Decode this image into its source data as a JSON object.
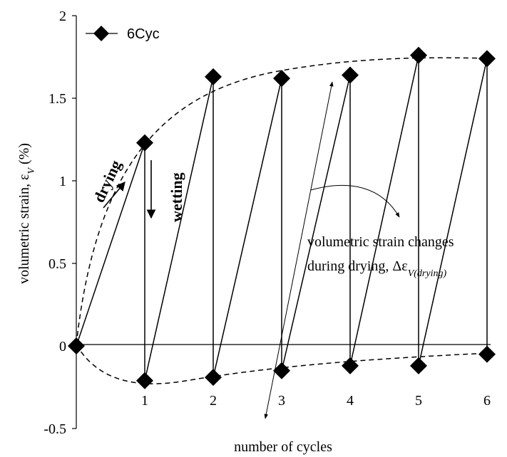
{
  "chart_data": {
    "type": "line",
    "xlabel": "number of cycles",
    "ylabel": "volumetric strain, εV (%)",
    "ylabel_parts": {
      "main": "volumetric strain, ε",
      "sub": "V",
      "end": " (%)"
    },
    "ylim": [
      -0.5,
      2
    ],
    "y_ticks": [
      "2",
      "1.5",
      "1",
      "0.5",
      "0",
      "-0.5"
    ],
    "x_ticks": [
      "1",
      "2",
      "3",
      "4",
      "5",
      "6"
    ],
    "grid": false,
    "legend": {
      "position": "top-left",
      "entries": [
        "6Cyc"
      ]
    },
    "series": [
      {
        "name": "6Cyc",
        "marker": "diamond",
        "points": [
          {
            "x": 0,
            "y": 0
          },
          {
            "x": 1,
            "y": 1.23
          },
          {
            "x": 1,
            "y": -0.21
          },
          {
            "x": 2,
            "y": 1.63
          },
          {
            "x": 2,
            "y": -0.19
          },
          {
            "x": 3,
            "y": 1.62
          },
          {
            "x": 3,
            "y": -0.15
          },
          {
            "x": 4,
            "y": 1.64
          },
          {
            "x": 4,
            "y": -0.12
          },
          {
            "x": 5,
            "y": 1.76
          },
          {
            "x": 5,
            "y": -0.12
          },
          {
            "x": 6,
            "y": 1.74
          },
          {
            "x": 6,
            "y": -0.05
          }
        ]
      }
    ],
    "annotations": {
      "drying": "drying",
      "wetting": "wetting",
      "note_line1": "volumetric strain changes",
      "note_line2_main": "during drying, Δε",
      "note_line2_sub": "V(drying)"
    }
  }
}
